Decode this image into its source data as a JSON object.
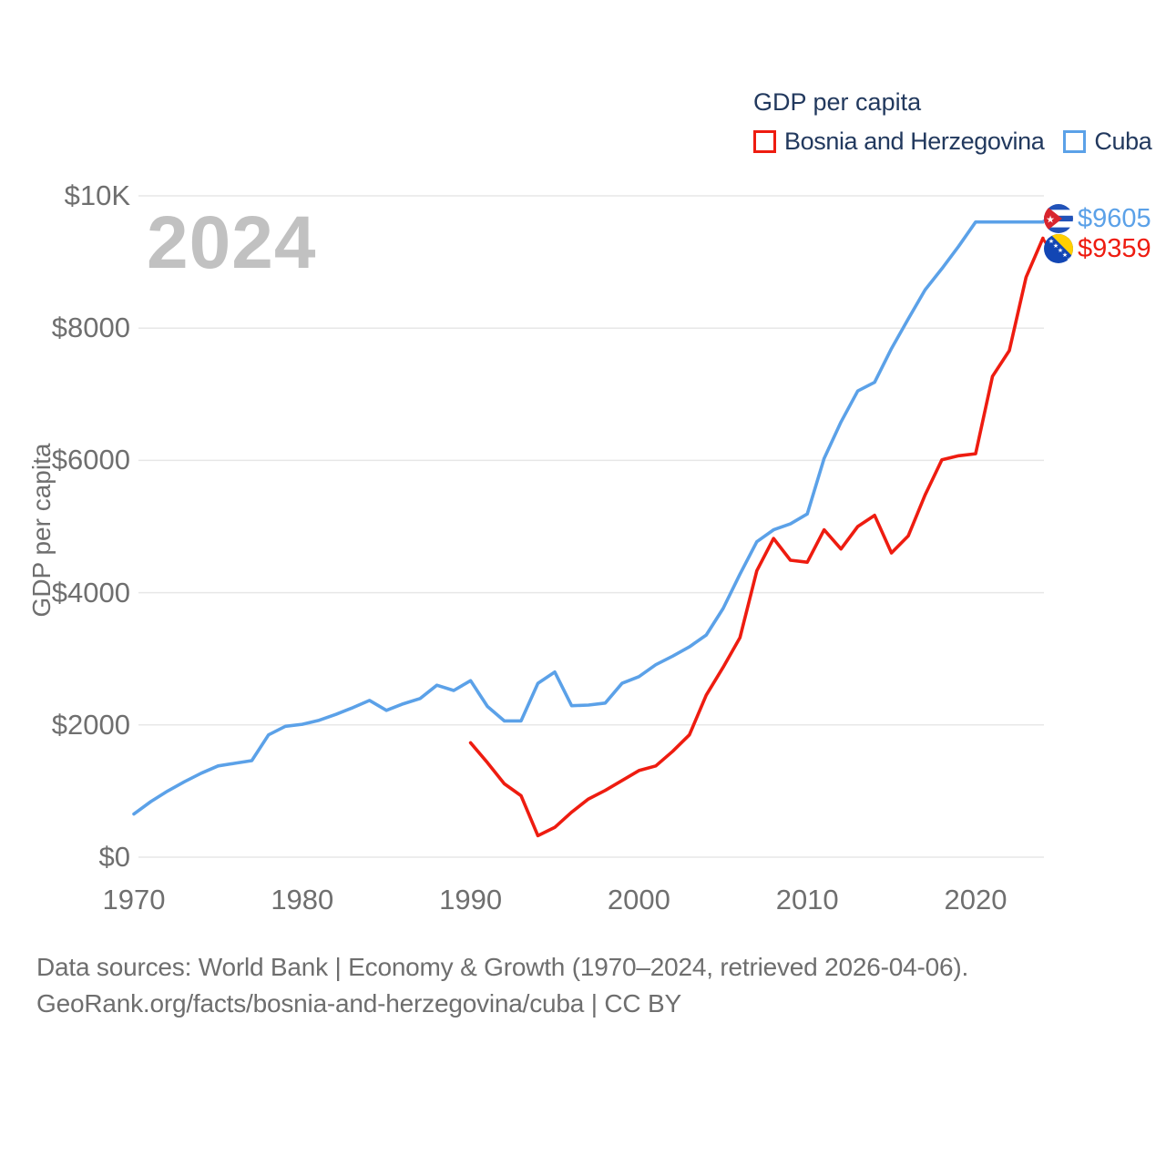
{
  "legend": {
    "title": "GDP per capita",
    "items": [
      {
        "label": "Bosnia and Herzegovina",
        "color": "#ee1c10"
      },
      {
        "label": "Cuba",
        "color": "#5ba1e8"
      }
    ]
  },
  "watermark": "2024",
  "y_axis_title": "GDP per capita",
  "end_labels": {
    "cuba": {
      "value": "$9605",
      "color": "#5ba1e8",
      "flag": "cuba-flag"
    },
    "bosnia": {
      "value": "$9359",
      "color": "#ee1c10",
      "flag": "bosnia-and-herzegovina-flag"
    }
  },
  "footer": {
    "line1": "Data sources: World Bank | Economy & Growth (1970–2024, retrieved 2026-04-06).",
    "line2": "GeoRank.org/facts/bosnia-and-herzegovina/cuba | CC BY"
  },
  "colors": {
    "bosnia_line": "#ee1c10",
    "cuba_line": "#5ba1e8",
    "grid": "#e7e7e7",
    "axis_text": "#6f6f6f",
    "legend_text": "#22395e",
    "watermark": "#c1c1c1"
  },
  "chart_data": {
    "type": "line",
    "title": "GDP per capita",
    "xlabel": "",
    "ylabel": "GDP per capita",
    "x_range": [
      1970,
      2024
    ],
    "ylim": [
      0,
      10000
    ],
    "grid": true,
    "legend_position": "top-right",
    "y_ticks": [
      {
        "value": 0,
        "label": "$0"
      },
      {
        "value": 2000,
        "label": "$2000"
      },
      {
        "value": 4000,
        "label": "$4000"
      },
      {
        "value": 6000,
        "label": "$6000"
      },
      {
        "value": 8000,
        "label": "$8000"
      },
      {
        "value": 10000,
        "label": "$10K"
      }
    ],
    "x_ticks": [
      {
        "value": 1970,
        "label": "1970"
      },
      {
        "value": 1980,
        "label": "1980"
      },
      {
        "value": 1990,
        "label": "1990"
      },
      {
        "value": 2000,
        "label": "2000"
      },
      {
        "value": 2010,
        "label": "2010"
      },
      {
        "value": 2020,
        "label": "2020"
      }
    ],
    "series": [
      {
        "name": "Cuba",
        "color": "#5ba1e8",
        "start_year": 1970,
        "end_label": "$9605",
        "values": [
          653,
          840,
          1000,
          1140,
          1270,
          1380,
          1420,
          1460,
          1850,
          1980,
          2010,
          2070,
          2160,
          2260,
          2370,
          2220,
          2320,
          2400,
          2600,
          2520,
          2670,
          2280,
          2060,
          2060,
          2630,
          2800,
          2290,
          2300,
          2330,
          2630,
          2730,
          2910,
          3040,
          3180,
          3360,
          3760,
          4280,
          4770,
          4950,
          5040,
          5190,
          6030,
          6580,
          7050,
          7180,
          7690,
          8140,
          8580,
          8900,
          9240,
          9605,
          9605,
          9605,
          9605,
          9605
        ]
      },
      {
        "name": "Bosnia and Herzegovina",
        "color": "#ee1c10",
        "start_year": 1990,
        "end_label": "$9359",
        "values": [
          1730,
          1430,
          1110,
          930,
          325,
          450,
          680,
          880,
          1010,
          1160,
          1310,
          1380,
          1600,
          1850,
          2450,
          2870,
          3320,
          4330,
          4820,
          4490,
          4460,
          4950,
          4660,
          5000,
          5170,
          4600,
          4860,
          5480,
          6010,
          6070,
          6100,
          7270,
          7660,
          8770,
          9359
        ]
      }
    ]
  }
}
